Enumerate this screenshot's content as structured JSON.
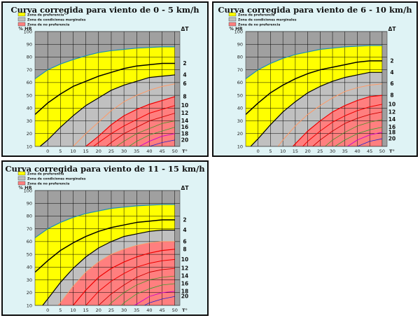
{
  "legend": {
    "preferred": "Zona de preferencia",
    "marginal": "Zona de condiciones marginales",
    "not_preferred": "Zona de  no preferencia"
  },
  "colors": {
    "background": "#dff3f5",
    "plot": "#a0a0a0",
    "preferred": "#ffff00",
    "marginal": "#c0c0c0",
    "not_preferred": "#ff7f7f",
    "grid": "#000000",
    "top_line": "#1c8fb4"
  },
  "chart_data": [
    {
      "type": "area",
      "title": "Curva corregida para viento de 0 - 5 km/h",
      "xlabel": "T°",
      "ylabel": "% HR",
      "dt_label": "ΔT",
      "xlim": [
        -5,
        52
      ],
      "ylim": [
        10,
        100
      ],
      "x_ticks": [
        "0",
        "5",
        "10",
        "15",
        "20",
        "25",
        "30",
        "35",
        "40",
        "45",
        "50"
      ],
      "y_ticks": [
        "10",
        "20",
        "30",
        "40",
        "50",
        "60",
        "70",
        "80",
        "90",
        "100"
      ],
      "dt_labels": [
        "2",
        "4",
        "6",
        "8",
        "10",
        "12",
        "14",
        "16",
        "18",
        "20"
      ],
      "series": [
        {
          "name": "top",
          "x": [
            -5,
            0,
            5,
            10,
            15,
            20,
            25,
            30,
            35,
            40,
            45,
            50
          ],
          "values": [
            63,
            70,
            74.5,
            78,
            81,
            83.5,
            85,
            86,
            87,
            87.5,
            88,
            88
          ]
        },
        {
          "name": "2",
          "x": [
            -5,
            0,
            5,
            10,
            15,
            20,
            25,
            30,
            35,
            40,
            45,
            50
          ],
          "values": [
            35,
            44,
            51,
            57,
            61,
            65,
            68,
            71,
            73,
            74,
            75,
            75
          ]
        },
        {
          "name": "4",
          "x": [
            -3,
            0,
            5,
            10,
            15,
            20,
            25,
            30,
            35,
            40,
            45,
            50
          ],
          "values": [
            10,
            15,
            25,
            34,
            42,
            48,
            54,
            58,
            61,
            64,
            65,
            66
          ]
        },
        {
          "name": "6",
          "x": [
            10,
            15,
            20,
            25,
            30,
            35,
            40,
            45,
            50
          ],
          "values": [
            10,
            20,
            29,
            38,
            45,
            50,
            54,
            57,
            59
          ]
        },
        {
          "name": "8",
          "x": [
            15,
            20,
            25,
            30,
            35,
            40,
            45,
            50
          ],
          "values": [
            10,
            18,
            27,
            34,
            39,
            43,
            46,
            49
          ]
        },
        {
          "name": "10",
          "x": [
            18,
            20,
            25,
            30,
            35,
            40,
            45,
            50
          ],
          "values": [
            10,
            13,
            20,
            26,
            31,
            36,
            39,
            42
          ]
        },
        {
          "name": "12",
          "x": [
            23,
            25,
            30,
            35,
            40,
            45,
            50
          ],
          "values": [
            10,
            13,
            20,
            25,
            30,
            33,
            36
          ]
        },
        {
          "name": "14",
          "x": [
            27,
            30,
            35,
            40,
            45,
            50
          ],
          "values": [
            10,
            14,
            20,
            24,
            28,
            30
          ]
        },
        {
          "name": "16",
          "x": [
            32,
            35,
            40,
            45,
            50
          ],
          "values": [
            10,
            14,
            19,
            22,
            25
          ]
        },
        {
          "name": "18",
          "x": [
            36,
            40,
            45,
            50
          ],
          "values": [
            10,
            14,
            18,
            20
          ]
        },
        {
          "name": "20",
          "x": [
            40,
            45,
            50
          ],
          "values": [
            10,
            13,
            15
          ]
        }
      ],
      "zones": {
        "preferred": [
          "top",
          "4"
        ],
        "marginal": [
          "4",
          "8"
        ],
        "not_preferred": [
          "8",
          "bottom"
        ]
      }
    },
    {
      "type": "area",
      "title": "Curva corregida para viento de 6 - 10 km/h",
      "xlabel": "T°",
      "ylabel": "% HR",
      "dt_label": "ΔT",
      "xlim": [
        -5,
        52
      ],
      "ylim": [
        10,
        100
      ],
      "x_ticks": [
        "0",
        "5",
        "10",
        "15",
        "20",
        "25",
        "30",
        "35",
        "40",
        "45",
        "50"
      ],
      "y_ticks": [
        "10",
        "20",
        "30",
        "40",
        "50",
        "60",
        "70",
        "80",
        "90",
        "100"
      ],
      "dt_labels": [
        "2",
        "4",
        "6",
        "8",
        "10",
        "12",
        "14",
        "16",
        "18",
        "20"
      ],
      "series": [
        {
          "name": "top",
          "x": [
            -5,
            0,
            5,
            10,
            15,
            20,
            25,
            30,
            35,
            40,
            45,
            50
          ],
          "values": [
            63,
            70,
            75,
            79,
            82,
            84,
            86,
            87,
            88,
            88.5,
            89,
            89
          ]
        },
        {
          "name": "2",
          "x": [
            -5,
            0,
            5,
            10,
            15,
            20,
            25,
            30,
            35,
            40,
            45,
            50
          ],
          "values": [
            35,
            44,
            52,
            58,
            63,
            67,
            70,
            72,
            74,
            76,
            77,
            77
          ]
        },
        {
          "name": "4",
          "x": [
            -3,
            0,
            5,
            10,
            15,
            20,
            25,
            30,
            35,
            40,
            45,
            50
          ],
          "values": [
            10,
            16,
            27,
            37,
            45,
            52,
            57,
            61,
            64,
            66,
            68,
            68
          ]
        },
        {
          "name": "6",
          "x": [
            8,
            10,
            15,
            20,
            25,
            30,
            35,
            40,
            45,
            50
          ],
          "values": [
            10,
            15,
            26,
            35,
            42,
            48,
            53,
            56,
            58,
            59
          ]
        },
        {
          "name": "8",
          "x": [
            14,
            15,
            20,
            25,
            30,
            35,
            40,
            45,
            50
          ],
          "values": [
            10,
            12,
            22,
            30,
            37,
            42,
            46,
            49,
            50
          ]
        },
        {
          "name": "10",
          "x": [
            18,
            20,
            25,
            30,
            35,
            40,
            45,
            50
          ],
          "values": [
            10,
            14,
            22,
            29,
            34,
            38,
            41,
            43
          ]
        },
        {
          "name": "12",
          "x": [
            22,
            25,
            30,
            35,
            40,
            45,
            50
          ],
          "values": [
            10,
            15,
            22,
            28,
            32,
            35,
            37
          ]
        },
        {
          "name": "14",
          "x": [
            27,
            30,
            35,
            40,
            45,
            50
          ],
          "values": [
            10,
            15,
            21,
            26,
            29,
            31
          ]
        },
        {
          "name": "16",
          "x": [
            31,
            35,
            40,
            45,
            50
          ],
          "values": [
            10,
            15,
            20,
            23,
            25
          ]
        },
        {
          "name": "18",
          "x": [
            36,
            40,
            45,
            50
          ],
          "values": [
            10,
            15,
            19,
            21
          ]
        },
        {
          "name": "20",
          "x": [
            40,
            45,
            50
          ],
          "values": [
            10,
            14,
            16
          ]
        }
      ],
      "zones": {
        "preferred": [
          "top",
          "4"
        ],
        "marginal": [
          "4",
          "8"
        ],
        "not_preferred": [
          "8",
          "bottom"
        ]
      }
    },
    {
      "type": "area",
      "title": "Curva corregida para viento de 11 - 15 km/h",
      "xlabel": "T°",
      "ylabel": "% HR",
      "dt_label": "ΔT",
      "xlim": [
        -5,
        52
      ],
      "ylim": [
        10,
        100
      ],
      "x_ticks": [
        "0",
        "5",
        "10",
        "15",
        "20",
        "25",
        "30",
        "35",
        "40",
        "45",
        "50"
      ],
      "y_ticks": [
        "10",
        "20",
        "30",
        "40",
        "50",
        "60",
        "70",
        "80",
        "90",
        "100"
      ],
      "dt_labels": [
        "2",
        "4",
        "6",
        "8",
        "10",
        "12",
        "14",
        "16",
        "18",
        "20"
      ],
      "series": [
        {
          "name": "top",
          "x": [
            -5,
            0,
            5,
            10,
            15,
            20,
            25,
            30,
            35,
            40,
            45,
            50
          ],
          "values": [
            63,
            70,
            75,
            79,
            82,
            84,
            86,
            87,
            88,
            88.5,
            89,
            89
          ]
        },
        {
          "name": "2",
          "x": [
            -5,
            0,
            5,
            10,
            15,
            20,
            25,
            30,
            35,
            40,
            45,
            50
          ],
          "values": [
            36,
            45,
            53,
            59,
            64,
            68,
            71,
            73,
            75,
            76,
            77,
            77
          ]
        },
        {
          "name": "4",
          "x": [
            -2,
            0,
            5,
            10,
            15,
            20,
            25,
            30,
            35,
            40,
            45,
            50
          ],
          "values": [
            10,
            15,
            28,
            39,
            48,
            55,
            60,
            64,
            66,
            68,
            69,
            69
          ]
        },
        {
          "name": "6",
          "x": [
            4,
            5,
            10,
            15,
            20,
            25,
            30,
            35,
            40,
            45,
            50
          ],
          "values": [
            10,
            12,
            25,
            36,
            44,
            50,
            54,
            57,
            59,
            60,
            60
          ]
        },
        {
          "name": "8",
          "x": [
            10,
            15,
            20,
            25,
            30,
            35,
            40,
            45,
            50
          ],
          "values": [
            10,
            22,
            32,
            39,
            44,
            48,
            51,
            53,
            54
          ]
        },
        {
          "name": "10",
          "x": [
            15,
            20,
            25,
            30,
            35,
            40,
            45,
            50
          ],
          "values": [
            10,
            21,
            29,
            35,
            40,
            43,
            45,
            46
          ]
        },
        {
          "name": "12",
          "x": [
            20,
            25,
            30,
            35,
            40,
            45,
            50
          ],
          "values": [
            10,
            19,
            26,
            32,
            36,
            38,
            39
          ]
        },
        {
          "name": "14",
          "x": [
            24,
            25,
            30,
            35,
            40,
            45,
            50
          ],
          "values": [
            10,
            12,
            20,
            26,
            30,
            32,
            33
          ]
        },
        {
          "name": "16",
          "x": [
            29,
            30,
            35,
            40,
            45,
            50
          ],
          "values": [
            10,
            12,
            19,
            23,
            26,
            27
          ]
        },
        {
          "name": "18",
          "x": [
            34,
            35,
            40,
            45,
            50
          ],
          "values": [
            10,
            11,
            17,
            20,
            21
          ]
        },
        {
          "name": "20",
          "x": [
            38,
            40,
            45,
            50
          ],
          "values": [
            10,
            12,
            15,
            17
          ]
        }
      ],
      "zones": {
        "preferred": [
          "top",
          "4"
        ],
        "marginal": [
          "4",
          "6"
        ],
        "not_preferred": [
          "6",
          "bottom"
        ]
      }
    }
  ]
}
